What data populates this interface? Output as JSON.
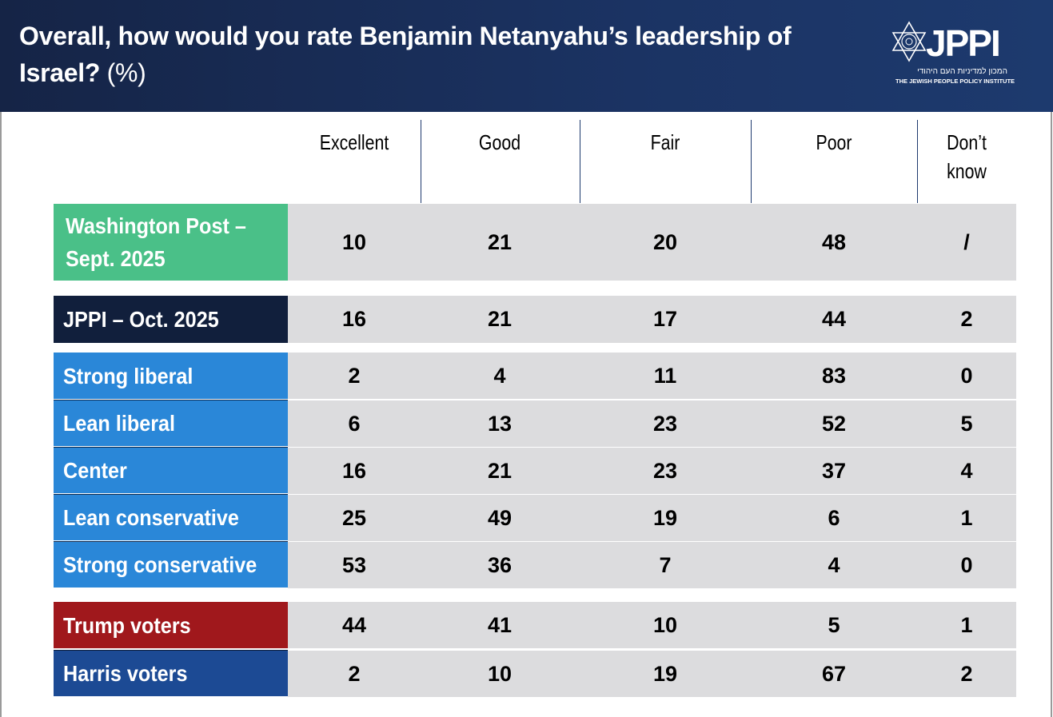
{
  "header": {
    "title": "Overall, how would you rate Benjamin Netanyahu’s leadership of Israel?",
    "title_suffix": "(%)",
    "logo": {
      "name": "JPPI",
      "hebrew": "המכון למדיניות העם היהודי",
      "english": "THE JEWISH PEOPLE POLICY INSTITUTE"
    }
  },
  "columns": [
    "Excellent",
    "Good",
    "Fair",
    "Poor",
    "Don’t know"
  ],
  "rows": [
    {
      "label": "Washington Post – Sept. 2025",
      "color": "#4ac088",
      "values": [
        "10",
        "21",
        "20",
        "48",
        "/"
      ]
    },
    {
      "label": "JPPI – Oct. 2025",
      "color": "#111f3c",
      "values": [
        "16",
        "21",
        "17",
        "44",
        "2"
      ]
    },
    {
      "label": "Strong liberal",
      "color": "#2a87d8",
      "values": [
        "2",
        "4",
        "11",
        "83",
        "0"
      ]
    },
    {
      "label": "Lean liberal",
      "color": "#2a87d8",
      "values": [
        "6",
        "13",
        "23",
        "52",
        "5"
      ]
    },
    {
      "label": "Center",
      "color": "#2a87d8",
      "values": [
        "16",
        "21",
        "23",
        "37",
        "4"
      ]
    },
    {
      "label": "Lean conservative",
      "color": "#2a87d8",
      "values": [
        "25",
        "49",
        "19",
        "6",
        "1"
      ]
    },
    {
      "label": "Strong conservative",
      "color": "#2a87d8",
      "values": [
        "53",
        "36",
        "7",
        "4",
        "0"
      ]
    },
    {
      "label": "Trump voters",
      "color": "#a0181c",
      "values": [
        "44",
        "41",
        "10",
        "5",
        "1"
      ]
    },
    {
      "label": "Harris voters",
      "color": "#1c4a94",
      "values": [
        "2",
        "10",
        "19",
        "67",
        "2"
      ]
    }
  ]
}
